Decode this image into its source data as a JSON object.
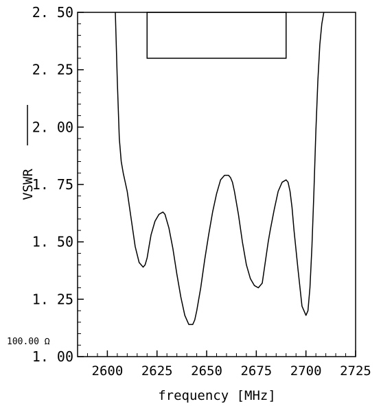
{
  "chart_data": {
    "type": "line",
    "xlabel": "frequency [MHz]",
    "ylabel": "VSWR",
    "xlim": [
      2585,
      2725
    ],
    "ylim": [
      1.0,
      2.5
    ],
    "x_ticks": [
      "2600",
      "2625",
      "2650",
      "2675",
      "2700",
      "2725"
    ],
    "y_ticks": [
      "1. 00",
      "1. 25",
      "1. 50",
      "1. 75",
      "2. 00",
      "2. 25",
      "2. 50"
    ],
    "reference_label": "100.00 Ω",
    "grid": false,
    "legend": "none",
    "series": [
      {
        "x": [
          2604,
          2605,
          2606,
          2607,
          2608,
          2610,
          2612,
          2614,
          2616,
          2618,
          2619,
          2620,
          2621,
          2622,
          2624,
          2626,
          2628,
          2629,
          2631,
          2633,
          2635,
          2637,
          2639,
          2641,
          2643,
          2644,
          2645,
          2647,
          2649,
          2651,
          2653,
          2655,
          2657,
          2659,
          2661,
          2662,
          2663,
          2664,
          2666,
          2668,
          2670,
          2672,
          2674,
          2676,
          2678,
          2679,
          2680,
          2681,
          2682,
          2684,
          2686,
          2688,
          2690,
          2691,
          2692,
          2693,
          2694,
          2696,
          2698,
          2700,
          2701,
          2702,
          2703,
          2704,
          2705,
          2706,
          2707,
          2708,
          2709
        ],
        "y": [
          2.5,
          2.2,
          1.95,
          1.85,
          1.8,
          1.72,
          1.6,
          1.48,
          1.41,
          1.39,
          1.4,
          1.43,
          1.48,
          1.53,
          1.59,
          1.62,
          1.63,
          1.62,
          1.56,
          1.47,
          1.36,
          1.26,
          1.18,
          1.14,
          1.14,
          1.16,
          1.2,
          1.3,
          1.42,
          1.53,
          1.63,
          1.71,
          1.77,
          1.79,
          1.79,
          1.78,
          1.76,
          1.72,
          1.62,
          1.5,
          1.4,
          1.34,
          1.31,
          1.3,
          1.32,
          1.38,
          1.44,
          1.5,
          1.55,
          1.64,
          1.72,
          1.76,
          1.77,
          1.76,
          1.72,
          1.65,
          1.55,
          1.38,
          1.22,
          1.18,
          1.2,
          1.3,
          1.48,
          1.72,
          1.98,
          2.2,
          2.36,
          2.45,
          2.5
        ]
      }
    ],
    "rectangle": {
      "x": [
        2620,
        2690
      ],
      "y": [
        2.3,
        2.5
      ]
    }
  }
}
